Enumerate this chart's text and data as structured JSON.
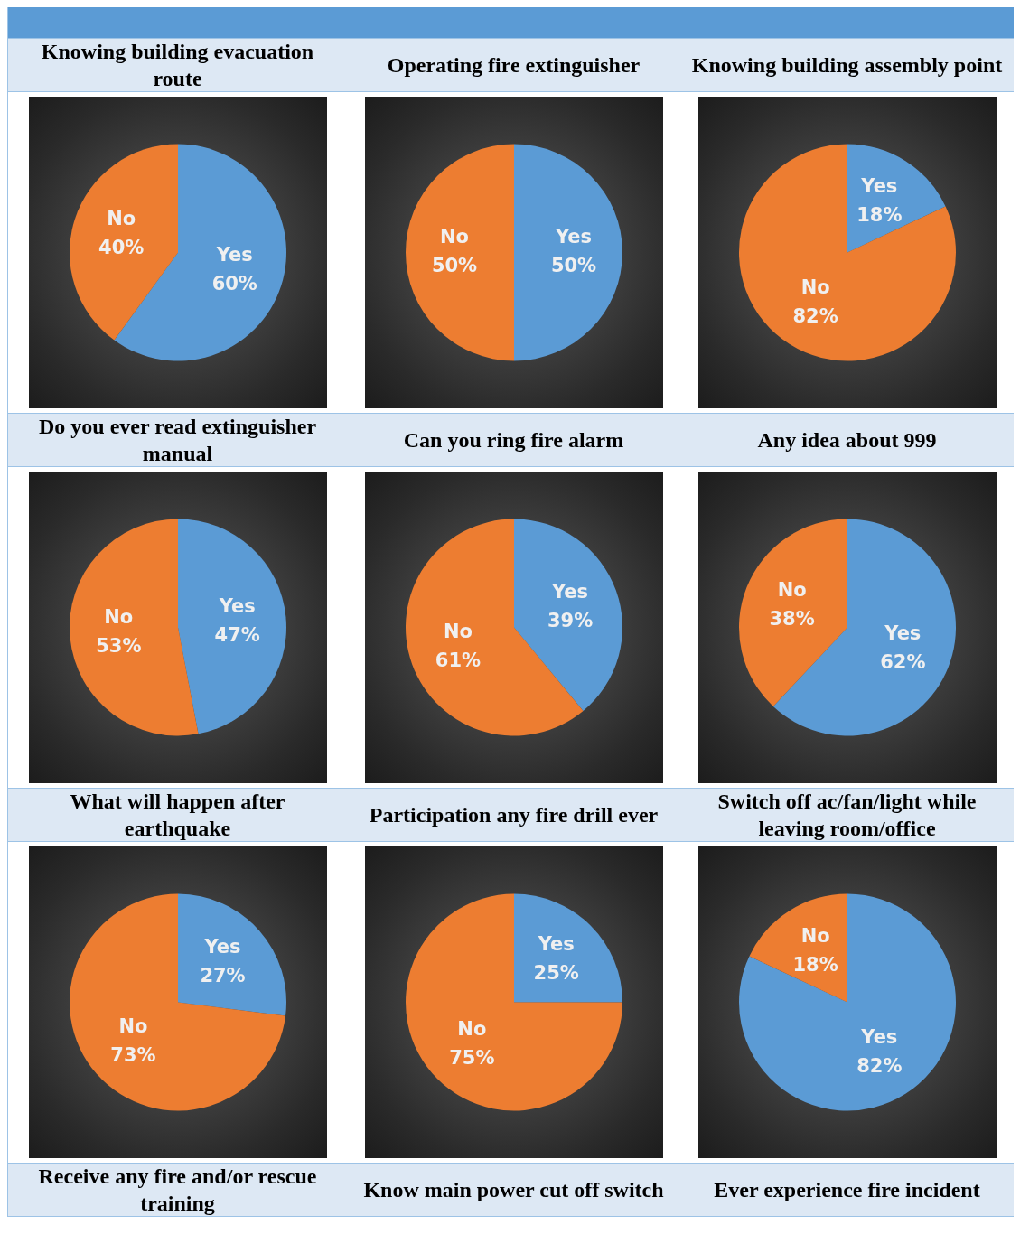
{
  "chart_data": [
    {
      "type": "pie",
      "title": "Knowing building evacuation route",
      "categories": [
        "Yes",
        "No"
      ],
      "values": [
        60,
        40
      ],
      "value_labels": [
        "60%",
        "40%"
      ],
      "colors": [
        "#5b9bd5",
        "#ed7d31"
      ]
    },
    {
      "type": "pie",
      "title": "Operating fire extinguisher",
      "categories": [
        "Yes",
        "No"
      ],
      "values": [
        50,
        50
      ],
      "value_labels": [
        "50%",
        "50%"
      ],
      "colors": [
        "#5b9bd5",
        "#ed7d31"
      ]
    },
    {
      "type": "pie",
      "title": "Knowing building assembly point",
      "categories": [
        "Yes",
        "No"
      ],
      "values": [
        18,
        82
      ],
      "value_labels": [
        "18%",
        "82%"
      ],
      "colors": [
        "#5b9bd5",
        "#ed7d31"
      ]
    },
    {
      "type": "pie",
      "title": "Do you ever read extinguisher manual",
      "categories": [
        "Yes",
        "No"
      ],
      "values": [
        47,
        53
      ],
      "value_labels": [
        "47%",
        "53%"
      ],
      "colors": [
        "#5b9bd5",
        "#ed7d31"
      ]
    },
    {
      "type": "pie",
      "title": "Can you ring fire alarm",
      "categories": [
        "Yes",
        "No"
      ],
      "values": [
        39,
        61
      ],
      "value_labels": [
        "39%",
        "61%"
      ],
      "colors": [
        "#5b9bd5",
        "#ed7d31"
      ]
    },
    {
      "type": "pie",
      "title": "Any idea about 999",
      "categories": [
        "Yes",
        "No"
      ],
      "values": [
        62,
        38
      ],
      "value_labels": [
        "62%",
        "38%"
      ],
      "colors": [
        "#5b9bd5",
        "#ed7d31"
      ]
    },
    {
      "type": "pie",
      "title": "What will happen after earthquake",
      "categories": [
        "Yes",
        "No"
      ],
      "values": [
        27,
        73
      ],
      "value_labels": [
        "27%",
        "73%"
      ],
      "colors": [
        "#5b9bd5",
        "#ed7d31"
      ]
    },
    {
      "type": "pie",
      "title": "Participation any fire drill ever",
      "categories": [
        "Yes",
        "No"
      ],
      "values": [
        25,
        75
      ],
      "value_labels": [
        "25%",
        "75%"
      ],
      "colors": [
        "#5b9bd5",
        "#ed7d31"
      ]
    },
    {
      "type": "pie",
      "title": "Switch off ac/fan/light while leaving room/office",
      "categories": [
        "Yes",
        "No"
      ],
      "values": [
        82,
        18
      ],
      "value_labels": [
        "82%",
        "18%"
      ],
      "colors": [
        "#5b9bd5",
        "#ed7d31"
      ]
    },
    {
      "type": "other",
      "title": "Receive any fire and/or rescue training"
    },
    {
      "type": "other",
      "title": "Know main power cut off switch"
    },
    {
      "type": "other",
      "title": "Ever experience fire incident"
    }
  ]
}
